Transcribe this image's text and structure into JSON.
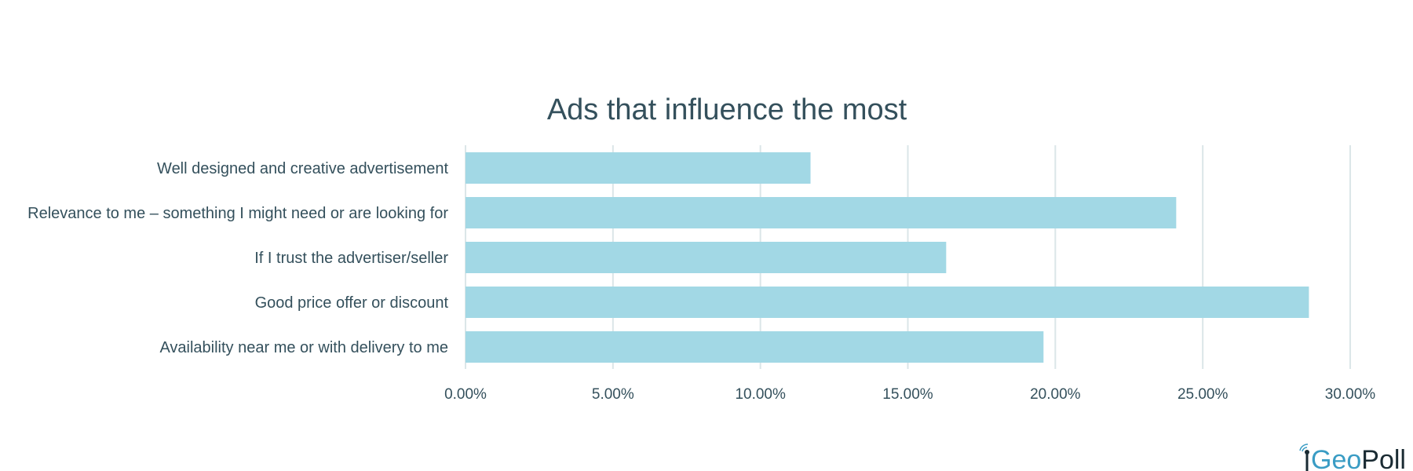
{
  "chart_data": {
    "type": "bar",
    "orientation": "horizontal",
    "title": "Ads that influence the most",
    "categories": [
      "Well designed and creative advertisement",
      "Relevance to me – something I might need or are looking for",
      "If I trust the advertiser/seller",
      "Good price offer or discount",
      "Availability near me or with delivery to me"
    ],
    "values": [
      11.7,
      24.1,
      16.3,
      28.6,
      19.6
    ],
    "xlim": [
      0,
      30
    ],
    "xticks": [
      0,
      5,
      10,
      15,
      20,
      25,
      30
    ],
    "xtick_labels": [
      "0.00%",
      "5.00%",
      "10.00%",
      "15.00%",
      "20.00%",
      "25.00%",
      "30.00%"
    ],
    "grid": true,
    "bar_color": "#a2d8e5",
    "grid_color": "#dbe6e8",
    "text_color": "#34505c"
  },
  "logo": {
    "part1": "Geo",
    "part2": "Poll"
  }
}
